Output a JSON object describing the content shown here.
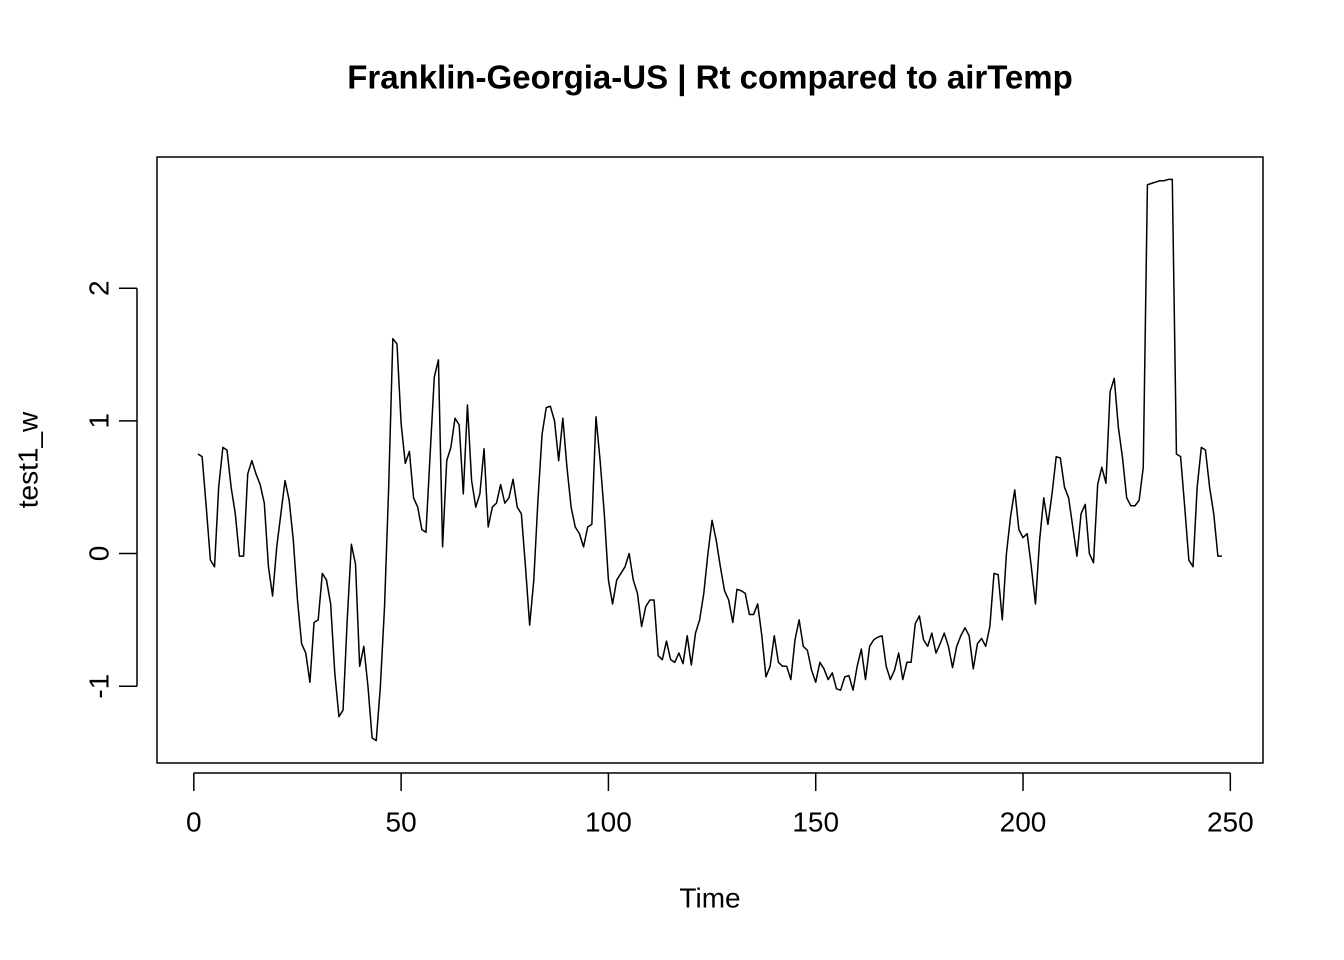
{
  "chart_data": {
    "type": "line",
    "title": "Franklin-Georgia-US | Rt compared to airTemp",
    "x_label": "Time",
    "y_label": "test1_w",
    "x": [
      1,
      2,
      3,
      4,
      5,
      6,
      7,
      8,
      9,
      10,
      11,
      12,
      13,
      14,
      15,
      16,
      17,
      18,
      19,
      20,
      21,
      22,
      23,
      24,
      25,
      26,
      27,
      28,
      29,
      30,
      31,
      32,
      33,
      34,
      35,
      36,
      37,
      38,
      39,
      40,
      41,
      42,
      43,
      44,
      45,
      46,
      47,
      48,
      49,
      50,
      51,
      52,
      53,
      54,
      55,
      56,
      57,
      58,
      59,
      60,
      61,
      62,
      63,
      64,
      65,
      66,
      67,
      68,
      69,
      70,
      71,
      72,
      73,
      74,
      75,
      76,
      77,
      78,
      79,
      80,
      81,
      82,
      83,
      84,
      85,
      86,
      87,
      88,
      89,
      90,
      91,
      92,
      93,
      94,
      95,
      96,
      97,
      98,
      99,
      100,
      101,
      102,
      103,
      104,
      105,
      106,
      107,
      108,
      109,
      110,
      111,
      112,
      113,
      114,
      115,
      116,
      117,
      118,
      119,
      120,
      121,
      122,
      123,
      124,
      125,
      126,
      127,
      128,
      129,
      130,
      131,
      132,
      133,
      134,
      135,
      136,
      137,
      138,
      139,
      140,
      141,
      142,
      143,
      144,
      145,
      146,
      147,
      148,
      149,
      150,
      151,
      152,
      153,
      154,
      155,
      156,
      157,
      158,
      159,
      160,
      161,
      162,
      163,
      164,
      165,
      166,
      167,
      168,
      169,
      170,
      171,
      172,
      173,
      174,
      175,
      176,
      177,
      178,
      179,
      180,
      181,
      182,
      183,
      184,
      185,
      186,
      187,
      188,
      189,
      190,
      191,
      192,
      193,
      194,
      195,
      196,
      197,
      198,
      199,
      200,
      201,
      202,
      203,
      204,
      205,
      206,
      207,
      208,
      209,
      210,
      211,
      212,
      213,
      214,
      215,
      216,
      217,
      218,
      219,
      220,
      221,
      222,
      223,
      224,
      225,
      226,
      227,
      228,
      229,
      230,
      231,
      232,
      233,
      234,
      235,
      236,
      237,
      238,
      239,
      240,
      241,
      242,
      243,
      244,
      245,
      246,
      247,
      248
    ],
    "values": [
      0.75,
      0.73,
      0.35,
      -0.05,
      -0.1,
      0.5,
      0.8,
      0.78,
      0.5,
      0.3,
      -0.02,
      -0.02,
      0.6,
      0.7,
      0.6,
      0.52,
      0.38,
      -0.1,
      -0.32,
      0.05,
      0.3,
      0.55,
      0.4,
      0.1,
      -0.35,
      -0.68,
      -0.75,
      -0.97,
      -0.52,
      -0.5,
      -0.15,
      -0.2,
      -0.38,
      -0.9,
      -1.23,
      -1.18,
      -0.5,
      0.07,
      -0.08,
      -0.85,
      -0.7,
      -1.0,
      -1.39,
      -1.41,
      -1.0,
      -0.4,
      0.5,
      1.62,
      1.58,
      0.98,
      0.68,
      0.77,
      0.42,
      0.35,
      0.18,
      0.16,
      0.75,
      1.33,
      1.46,
      0.05,
      0.7,
      0.8,
      1.02,
      0.97,
      0.45,
      1.12,
      0.55,
      0.35,
      0.45,
      0.79,
      0.2,
      0.35,
      0.38,
      0.52,
      0.38,
      0.42,
      0.56,
      0.35,
      0.3,
      -0.1,
      -0.54,
      -0.2,
      0.4,
      0.9,
      1.1,
      1.11,
      1.0,
      0.7,
      1.02,
      0.65,
      0.35,
      0.2,
      0.15,
      0.05,
      0.2,
      0.22,
      1.03,
      0.7,
      0.3,
      -0.2,
      -0.38,
      -0.2,
      -0.15,
      -0.1,
      0,
      -0.2,
      -0.3,
      -0.55,
      -0.4,
      -0.35,
      -0.35,
      -0.77,
      -0.8,
      -0.66,
      -0.8,
      -0.82,
      -0.75,
      -0.83,
      -0.62,
      -0.84,
      -0.6,
      -0.5,
      -0.3,
      0.0,
      0.25,
      0.1,
      -0.1,
      -0.28,
      -0.35,
      -0.52,
      -0.27,
      -0.28,
      -0.3,
      -0.46,
      -0.46,
      -0.38,
      -0.62,
      -0.93,
      -0.85,
      -0.62,
      -0.82,
      -0.85,
      -0.85,
      -0.95,
      -0.65,
      -0.5,
      -0.7,
      -0.73,
      -0.88,
      -0.97,
      -0.82,
      -0.87,
      -0.95,
      -0.9,
      -1.02,
      -1.03,
      -0.93,
      -0.92,
      -1.03,
      -0.85,
      -0.72,
      -0.95,
      -0.7,
      -0.65,
      -0.63,
      -0.62,
      -0.85,
      -0.95,
      -0.88,
      -0.75,
      -0.95,
      -0.82,
      -0.82,
      -0.53,
      -0.47,
      -0.65,
      -0.7,
      -0.6,
      -0.75,
      -0.68,
      -0.6,
      -0.7,
      -0.86,
      -0.7,
      -0.62,
      -0.56,
      -0.62,
      -0.87,
      -0.68,
      -0.64,
      -0.7,
      -0.55,
      -0.15,
      -0.16,
      -0.5,
      0.0,
      0.28,
      0.48,
      0.18,
      0.12,
      0.15,
      -0.1,
      -0.38,
      0.1,
      0.42,
      0.22,
      0.45,
      0.73,
      0.72,
      0.5,
      0.42,
      0.2,
      -0.02,
      0.3,
      0.37,
      0.0,
      -0.07,
      0.52,
      0.65,
      0.53,
      1.22,
      1.32,
      0.95,
      0.72,
      0.42,
      0.36,
      0.36,
      0.4,
      0.65,
      2.78,
      2.79,
      2.8,
      2.81,
      2.81,
      2.82,
      2.82,
      0.75,
      0.73,
      0.35,
      -0.05,
      -0.1,
      0.5,
      0.8,
      0.78,
      0.5,
      0.3,
      -0.02,
      -0.02
    ],
    "color": "#000000",
    "xlim": [
      -8.88,
      257.88
    ],
    "ylim": [
      -1.579,
      2.989
    ],
    "xticks": [
      0,
      50,
      100,
      150,
      200,
      250
    ],
    "yticks": [
      -1,
      0,
      1,
      2
    ]
  }
}
